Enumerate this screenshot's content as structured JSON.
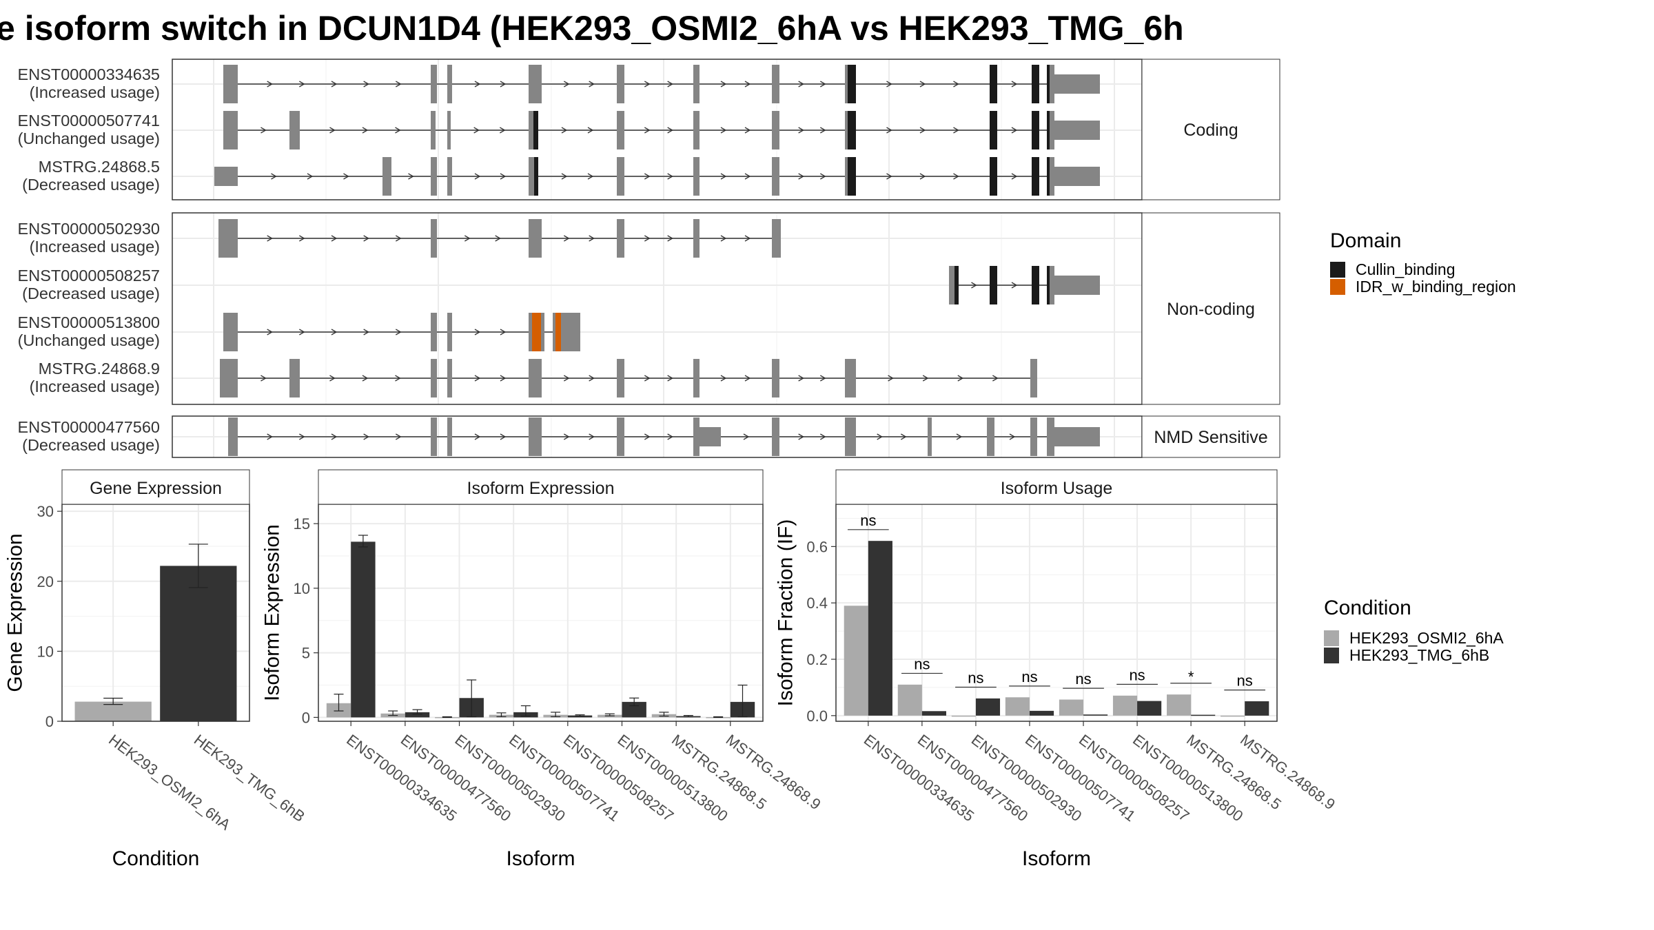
{
  "title": "e isoform switch in DCUN1D4 (HEK293_OSMI2_6hA vs HEK293_TMG_6h",
  "colors": {
    "exon": "#858585",
    "cullin_binding": "#1a1a1a",
    "idr_w_binding_region": "#d55e00",
    "condition_a": "#aaaaaa",
    "condition_b": "#333333"
  },
  "transcript_panels": [
    {
      "label": "Coding",
      "transcripts": [
        {
          "id": "ENST00000334635",
          "usage": "(Increased usage)"
        },
        {
          "id": "ENST00000507741",
          "usage": "(Unchanged usage)"
        },
        {
          "id": "MSTRG.24868.5",
          "usage": "(Decreased usage)"
        }
      ]
    },
    {
      "label": "Non-coding",
      "transcripts": [
        {
          "id": "ENST00000502930",
          "usage": "(Increased usage)"
        },
        {
          "id": "ENST00000508257",
          "usage": "(Decreased usage)"
        },
        {
          "id": "ENST00000513800",
          "usage": "(Unchanged usage)"
        },
        {
          "id": "MSTRG.24868.9",
          "usage": "(Increased usage)"
        }
      ]
    },
    {
      "label": "NMD Sensitive",
      "transcripts": [
        {
          "id": "ENST00000477560",
          "usage": "(Decreased usage)"
        }
      ]
    }
  ],
  "domain_legend": {
    "title": "Domain",
    "items": [
      {
        "name": "Cullin_binding",
        "color": "#1a1a1a"
      },
      {
        "name": "IDR_w_binding_region",
        "color": "#d55e00"
      }
    ]
  },
  "condition_legend": {
    "title": "Condition",
    "items": [
      {
        "name": "HEK293_OSMI2_6hA",
        "color": "#aaaaaa"
      },
      {
        "name": "HEK293_TMG_6hB",
        "color": "#333333"
      }
    ]
  },
  "chart_data": [
    {
      "type": "bar",
      "title": "Gene Expression",
      "xlabel": "Condition",
      "ylabel": "Gene Expression",
      "ylim": [
        0,
        31
      ],
      "yticks": [
        0,
        10,
        20,
        30
      ],
      "grid": true,
      "categories": [
        "HEK293_OSMI2_6hA",
        "HEK293_TMG_6hB"
      ],
      "values": [
        2.8,
        22.2
      ],
      "errors": [
        [
          2.4,
          3.3
        ],
        [
          19.1,
          25.3
        ]
      ],
      "colors": [
        "#aaaaaa",
        "#333333"
      ]
    },
    {
      "type": "bar",
      "title": "Isoform Expression",
      "xlabel": "Isoform",
      "ylabel": "Isoform Expression",
      "ylim": [
        -0.3,
        16.5
      ],
      "yticks": [
        0,
        5,
        10,
        15
      ],
      "grid": true,
      "categories": [
        "ENST00000334635",
        "ENST00000477560",
        "ENST00000502930",
        "ENST00000507741",
        "ENST00000508257",
        "ENST00000513800",
        "MSTRG.24868.5",
        "MSTRG.24868.9"
      ],
      "series": [
        {
          "name": "HEK293_OSMI2_6hA",
          "values": [
            1.1,
            0.3,
            0.02,
            0.2,
            0.2,
            0.2,
            0.25,
            0.02
          ],
          "errors": [
            [
              0.5,
              1.8
            ],
            [
              0.15,
              0.5
            ],
            [
              0,
              0.05
            ],
            [
              0.05,
              0.35
            ],
            [
              0.05,
              0.4
            ],
            [
              0.12,
              0.28
            ],
            [
              0.1,
              0.4
            ],
            [
              0,
              0.05
            ]
          ]
        },
        {
          "name": "HEK293_TMG_6hB",
          "values": [
            13.6,
            0.4,
            1.5,
            0.4,
            0.15,
            1.2,
            0.1,
            1.2
          ],
          "errors": [
            [
              13.2,
              14.1
            ],
            [
              0.25,
              0.6
            ],
            [
              0.05,
              2.9
            ],
            [
              0.1,
              0.9
            ],
            [
              0.1,
              0.2
            ],
            [
              0.9,
              1.5
            ],
            [
              0.05,
              0.15
            ],
            [
              0.05,
              2.5
            ]
          ]
        }
      ]
    },
    {
      "type": "bar",
      "title": "Isoform Usage",
      "xlabel": "Isoform",
      "ylabel": "Isoform Fraction (IF)",
      "ylim": [
        -0.02,
        0.75
      ],
      "yticks": [
        0.0,
        0.2,
        0.4,
        0.6
      ],
      "grid": true,
      "categories": [
        "ENST00000334635",
        "ENST00000477560",
        "ENST00000502930",
        "ENST00000507741",
        "ENST00000508257",
        "ENST00000513800",
        "MSTRG.24868.5",
        "MSTRG.24868.9"
      ],
      "series": [
        {
          "name": "HEK293_OSMI2_6hA",
          "values": [
            0.39,
            0.11,
            0.0,
            0.065,
            0.057,
            0.071,
            0.075,
            0.0
          ]
        },
        {
          "name": "HEK293_TMG_6hB",
          "values": [
            0.62,
            0.016,
            0.061,
            0.017,
            0.004,
            0.052,
            0.003,
            0.051
          ]
        }
      ],
      "significance": [
        "ns",
        "ns",
        "ns",
        "ns",
        "ns",
        "ns",
        "*",
        "ns"
      ]
    }
  ]
}
